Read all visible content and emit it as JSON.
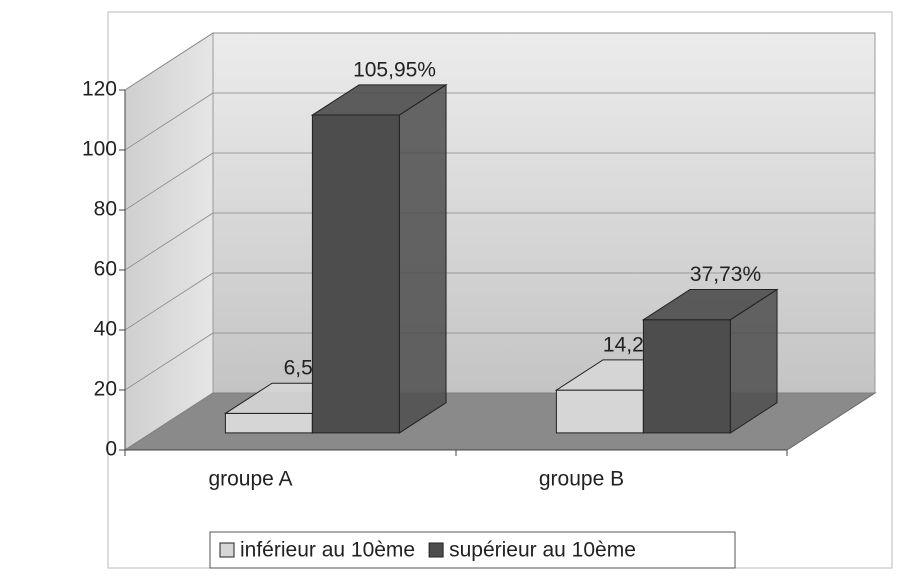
{
  "chart_data": {
    "type": "bar3d",
    "categories": [
      "groupe A",
      "groupe B"
    ],
    "series": [
      {
        "name": "inférieur au 10ème",
        "color": "#d6d6d6",
        "values": [
          6.5,
          14.27
        ],
        "value_labels": [
          "6,5%",
          "14,27%"
        ]
      },
      {
        "name": "supérieur au 10ème",
        "color": "#4d4d4d",
        "values": [
          105.95,
          37.73
        ],
        "value_labels": [
          "105,95%",
          "37,73%"
        ]
      }
    ],
    "ylim": [
      0,
      120
    ],
    "yticks": [
      0,
      20,
      40,
      60,
      80,
      100,
      120
    ],
    "grid": true,
    "legend": "bottom"
  }
}
